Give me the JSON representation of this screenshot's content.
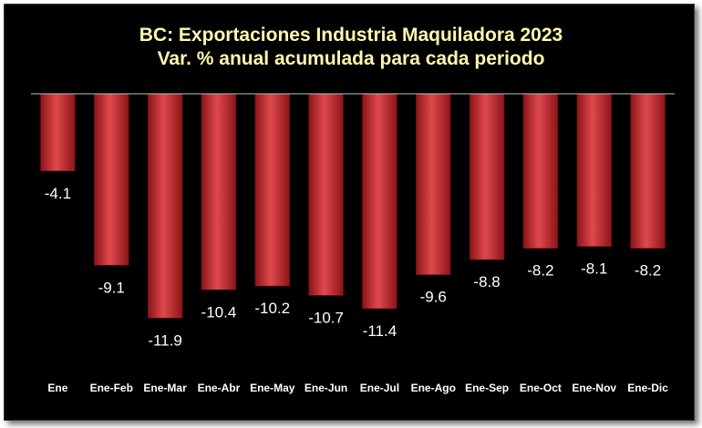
{
  "chart_data": {
    "type": "bar",
    "title": "BC: Exportaciones Industria Maquiladora 2023",
    "subtitle": "Var. % anual acumulada para cada periodo",
    "categories": [
      "Ene",
      "Ene-Feb",
      "Ene-Mar",
      "Ene-Abr",
      "Ene-May",
      "Ene-Jun",
      "Ene-Jul",
      "Ene-Ago",
      "Ene-Sep",
      "Ene-Oct",
      "Ene-Nov",
      "Ene-Dic"
    ],
    "values": [
      -4.1,
      -9.1,
      -11.9,
      -10.4,
      -10.2,
      -10.7,
      -11.4,
      -9.6,
      -8.8,
      -8.2,
      -8.1,
      -8.2
    ],
    "value_labels": [
      "-4.1",
      "-9.1",
      "-11.9",
      "-10.4",
      "-10.2",
      "-10.7",
      "-11.4",
      "-9.6",
      "-8.8",
      "-8.2",
      "-8.1",
      "-8.2"
    ],
    "xlabel": "",
    "ylabel": "",
    "ylim": [
      -12,
      0
    ],
    "grid": false,
    "legend": "none",
    "colors": {
      "bar": "#c0272d",
      "bar_light": "#e85a5a",
      "bar_dark": "#7a1014",
      "background": "#000000",
      "title": "#fff7b0",
      "text": "#ffffff"
    }
  }
}
